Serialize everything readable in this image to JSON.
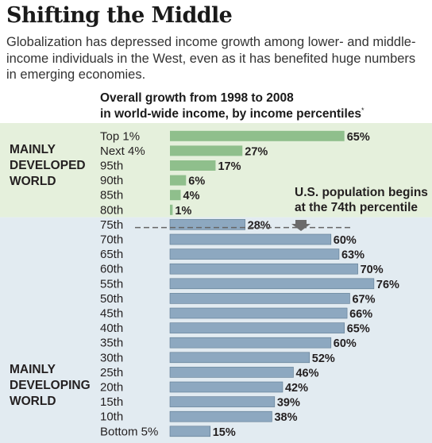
{
  "title": "Shifting the Middle",
  "subtitle": "Globalization has depressed income growth among lower- and middle-income individuals in the West, even as it has benefited huge numbers in emerging economies.",
  "colors": {
    "developed_band": "#e5f0dc",
    "developing_band": "#e2ebf1",
    "developed_bar": "#8fbf8c",
    "developing_bar": "#8da8c0",
    "bar_stroke": "#5e7a91",
    "text": "#231f20"
  },
  "chart_data": {
    "type": "bar",
    "orientation": "horizontal",
    "title_line1": "Overall growth from 1998 to 2008",
    "title_line2": "in world-wide income, by income percentiles",
    "title_mark": "*",
    "value_suffix": "%",
    "categories": [
      "Top 1%",
      "Next 4%",
      "95th",
      "90th",
      "85th",
      "80th",
      "75th",
      "70th",
      "65th",
      "60th",
      "55th",
      "50th",
      "45th",
      "40th",
      "35th",
      "30th",
      "25th",
      "20th",
      "15th",
      "10th",
      "Bottom 5%"
    ],
    "values": [
      65,
      27,
      17,
      6,
      4,
      1,
      28,
      60,
      63,
      70,
      76,
      67,
      66,
      65,
      60,
      52,
      46,
      42,
      39,
      38,
      15
    ],
    "groups": [
      {
        "label_lines": [
          "MAINLY",
          "DEVELOPED",
          "WORLD"
        ],
        "start": 0,
        "end": 5
      },
      {
        "label_lines": [
          "MAINLY",
          "DEVELOPING",
          "WORLD"
        ],
        "start": 6,
        "end": 20
      }
    ],
    "annotation": {
      "lines": [
        "U.S. population begins",
        "at the 74th percentile"
      ],
      "percentile": 74
    },
    "xlim": [
      0,
      80
    ]
  }
}
